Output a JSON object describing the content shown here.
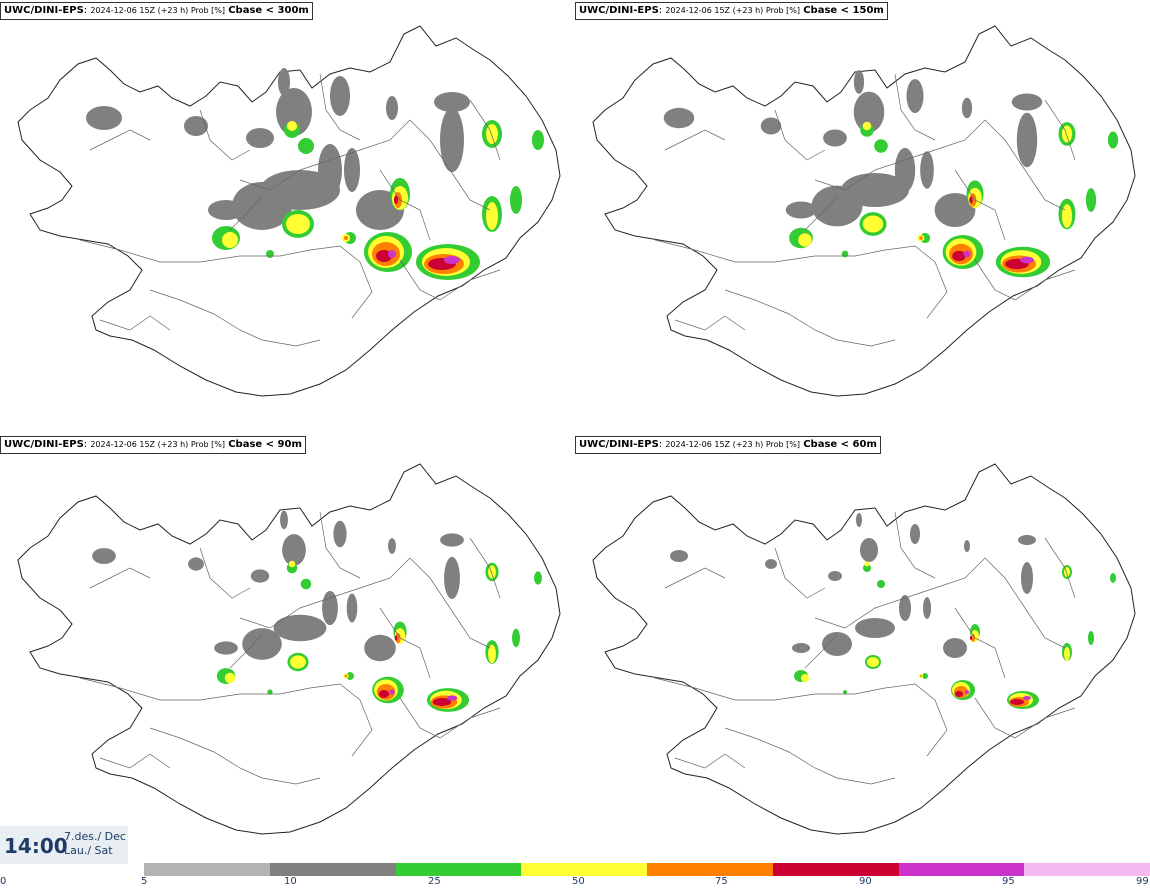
{
  "panels": [
    {
      "model": "UWC/DINI-EPS",
      "sep": ":",
      "timestamp": "2024-12-06 15Z (+23 h) Prob [%]",
      "threshold": "Cbase < 300m"
    },
    {
      "model": "UWC/DINI-EPS",
      "sep": ":",
      "timestamp": "2024-12-06 15Z (+23 h) Prob [%]",
      "threshold": "Cbase < 150m"
    },
    {
      "model": "UWC/DINI-EPS",
      "sep": ":",
      "timestamp": "2024-12-06 15Z (+23 h) Prob [%]",
      "threshold": "Cbase < 90m"
    },
    {
      "model": "UWC/DINI-EPS",
      "sep": ":",
      "timestamp": "2024-12-06 15Z (+23 h) Prob [%]",
      "threshold": "Cbase < 60m"
    }
  ],
  "time": "14:00",
  "date_line1": "7.des./ Dec",
  "date_line2": "Lau./ Sat",
  "legend": {
    "labels": [
      "0",
      "5",
      "10",
      "25",
      "50",
      "75",
      "90",
      "95",
      "99"
    ],
    "colors": [
      "#b3b3b3",
      "#808080",
      "#33cc33",
      "#ffff33",
      "#ff7f00",
      "#cc0033",
      "#cc33cc",
      "#f5b8f0"
    ]
  }
}
